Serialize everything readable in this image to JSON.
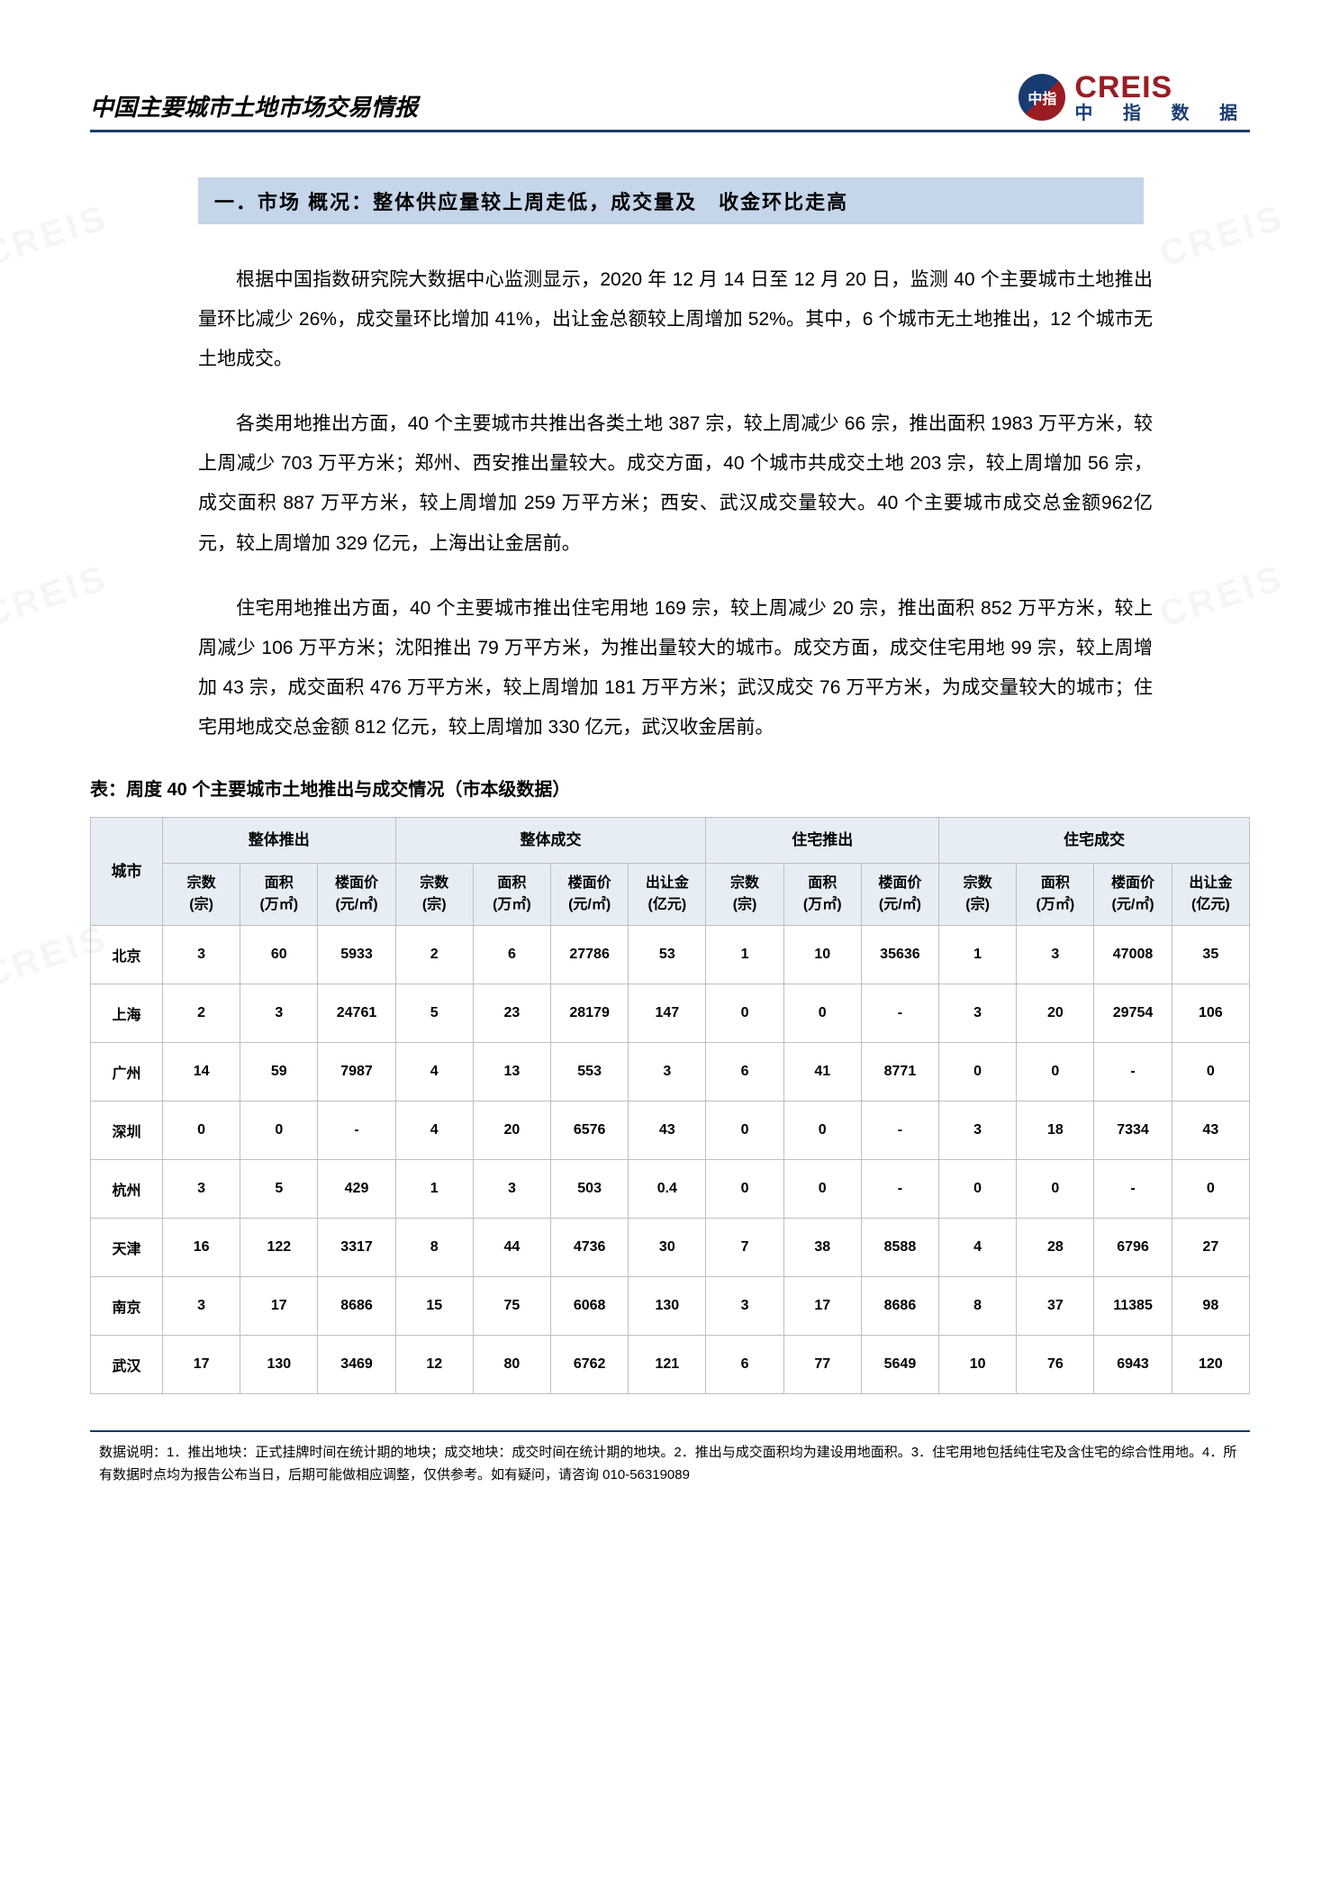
{
  "header": {
    "title": "中国主要城市土地市场交易情报",
    "logo_en": "CREIS",
    "logo_cn": "中 指 数 据",
    "logo_mark": "中指"
  },
  "section_heading": "一．市场 概况：整体供应量较上周走低，成交量及　收金环比走高",
  "paragraphs": [
    "根据中国指数研究院大数据中心监测显示，2020 年 12 月 14 日至 12 月 20 日，监测 40 个主要城市土地推出量环比减少 26%，成交量环比增加 41%，出让金总额较上周增加 52%。其中，6 个城市无土地推出，12 个城市无土地成交。",
    "各类用地推出方面，40 个主要城市共推出各类土地 387 宗，较上周减少 66 宗，推出面积 1983 万平方米，较上周减少 703 万平方米；郑州、西安推出量较大。成交方面，40 个城市共成交土地 203 宗，较上周增加 56 宗，成交面积 887 万平方米，较上周增加 259 万平方米；西安、武汉成交量较大。40 个主要城市成交总金额962亿元，较上周增加 329 亿元，上海出让金居前。",
    "住宅用地推出方面，40 个主要城市推出住宅用地 169 宗，较上周减少 20 宗，推出面积 852 万平方米，较上周减少 106 万平方米；沈阳推出 79 万平方米，为推出量较大的城市。成交方面，成交住宅用地 99 宗，较上周增加 43 宗，成交面积 476 万平方米，较上周增加 181 万平方米；武汉成交 76 万平方米，为成交量较大的城市；住宅用地成交总金额 812 亿元，较上周增加 330 亿元，武汉收金居前。"
  ],
  "table": {
    "caption": "表：周度 40 个主要城市土地推出与成交情况（市本级数据）",
    "group_headers": [
      "整体推出",
      "整体成交",
      "住宅推出",
      "住宅成交"
    ],
    "city_header": "城市",
    "sub_headers": {
      "zongshu": "宗数\n(宗)",
      "mianji": "面积\n(万㎡)",
      "loumianjia": "楼面价\n(元/㎡)",
      "churangjin": "出让金\n(亿元)"
    },
    "group_defs": [
      {
        "cols": [
          "zongshu",
          "mianji",
          "loumianjia"
        ]
      },
      {
        "cols": [
          "zongshu",
          "mianji",
          "loumianjia",
          "churangjin"
        ]
      },
      {
        "cols": [
          "zongshu",
          "mianji",
          "loumianjia"
        ]
      },
      {
        "cols": [
          "zongshu",
          "mianji",
          "loumianjia",
          "churangjin"
        ]
      }
    ],
    "rows": [
      {
        "city": "北京",
        "g1": [
          "3",
          "60",
          "5933"
        ],
        "g2": [
          "2",
          "6",
          "27786",
          "53"
        ],
        "g3": [
          "1",
          "10",
          "35636"
        ],
        "g4": [
          "1",
          "3",
          "47008",
          "35"
        ]
      },
      {
        "city": "上海",
        "g1": [
          "2",
          "3",
          "24761"
        ],
        "g2": [
          "5",
          "23",
          "28179",
          "147"
        ],
        "g3": [
          "0",
          "0",
          "-"
        ],
        "g4": [
          "3",
          "20",
          "29754",
          "106"
        ]
      },
      {
        "city": "广州",
        "g1": [
          "14",
          "59",
          "7987"
        ],
        "g2": [
          "4",
          "13",
          "553",
          "3"
        ],
        "g3": [
          "6",
          "41",
          "8771"
        ],
        "g4": [
          "0",
          "0",
          "-",
          "0"
        ]
      },
      {
        "city": "深圳",
        "g1": [
          "0",
          "0",
          "-"
        ],
        "g2": [
          "4",
          "20",
          "6576",
          "43"
        ],
        "g3": [
          "0",
          "0",
          "-"
        ],
        "g4": [
          "3",
          "18",
          "7334",
          "43"
        ]
      },
      {
        "city": "杭州",
        "g1": [
          "3",
          "5",
          "429"
        ],
        "g2": [
          "1",
          "3",
          "503",
          "0.4"
        ],
        "g3": [
          "0",
          "0",
          "-"
        ],
        "g4": [
          "0",
          "0",
          "-",
          "0"
        ]
      },
      {
        "city": "天津",
        "g1": [
          "16",
          "122",
          "3317"
        ],
        "g2": [
          "8",
          "44",
          "4736",
          "30"
        ],
        "g3": [
          "7",
          "38",
          "8588"
        ],
        "g4": [
          "4",
          "28",
          "6796",
          "27"
        ]
      },
      {
        "city": "南京",
        "g1": [
          "3",
          "17",
          "8686"
        ],
        "g2": [
          "15",
          "75",
          "6068",
          "130"
        ],
        "g3": [
          "3",
          "17",
          "8686"
        ],
        "g4": [
          "8",
          "37",
          "11385",
          "98"
        ]
      },
      {
        "city": "武汉",
        "g1": [
          "17",
          "130",
          "3469"
        ],
        "g2": [
          "12",
          "80",
          "6762",
          "121"
        ],
        "g3": [
          "6",
          "77",
          "5649"
        ],
        "g4": [
          "10",
          "76",
          "6943",
          "120"
        ]
      }
    ],
    "header_bg": "#e6edf5",
    "border_color": "#bfbfbf"
  },
  "footnote": "数据说明：1．推出地块：正式挂牌时间在统计期的地块；成交地块：成交时间在统计期的地块。2．推出与成交面积均为建设用地面积。3．住宅用地包括纯住宅及含住宅的综合性用地。4．所有数据时点均为报告公布当日，后期可能做相应调整，仅供参考。如有疑问，请咨询 010-56319089",
  "colors": {
    "rule": "#1a3a6e",
    "heading_bg": "#c5d5ea",
    "logo_red": "#9b1c22",
    "logo_blue": "#183b72"
  },
  "watermark_text": "CREIS"
}
